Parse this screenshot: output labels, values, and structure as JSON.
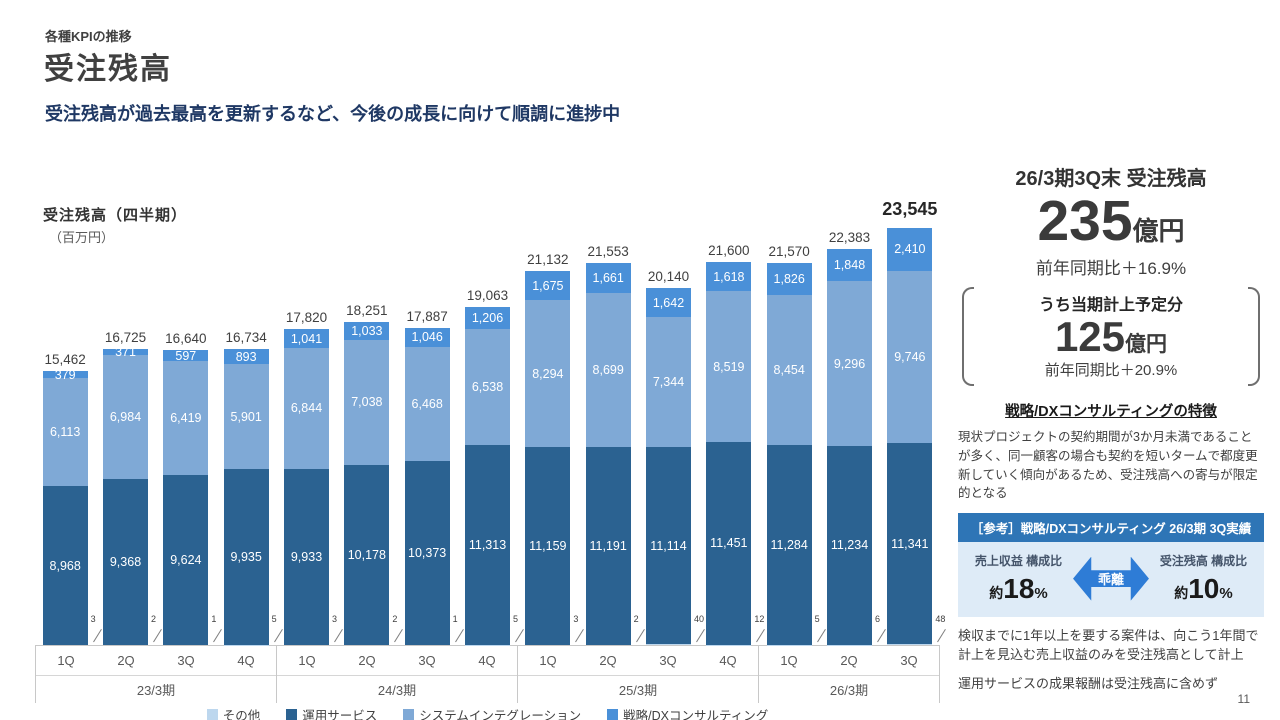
{
  "header": {
    "kicker": "各種KPIの推移",
    "title": "受注残高",
    "subtitle": "受注残高が過去最高を更新するなど、今後の成長に向けて順調に進捗中"
  },
  "chart_data": {
    "type": "bar",
    "stacked": true,
    "title": "受注残高（四半期）",
    "unit_label": "（百万円）",
    "ylim": [
      0,
      23545
    ],
    "legend_position": "bottom",
    "groups": [
      {
        "label": "23/3期",
        "quarters": [
          "1Q",
          "2Q",
          "3Q",
          "4Q"
        ]
      },
      {
        "label": "24/3期",
        "quarters": [
          "1Q",
          "2Q",
          "3Q",
          "4Q"
        ]
      },
      {
        "label": "25/3期",
        "quarters": [
          "1Q",
          "2Q",
          "3Q",
          "4Q"
        ]
      },
      {
        "label": "26/3期",
        "quarters": [
          "1Q",
          "2Q",
          "3Q"
        ]
      }
    ],
    "series": [
      {
        "name": "その他",
        "color": "#BDD7EE",
        "label_style": "callout",
        "values": [
          3,
          2,
          1,
          5,
          3,
          2,
          1,
          5,
          3,
          2,
          40,
          12,
          5,
          6,
          48
        ]
      },
      {
        "name": "運用サービス",
        "color": "#2B6291",
        "label_style": "inside",
        "values": [
          8968,
          9368,
          9624,
          9935,
          9933,
          10178,
          10373,
          11313,
          11159,
          11191,
          11114,
          11451,
          11284,
          11234,
          11341
        ]
      },
      {
        "name": "システムインテグレーション",
        "color": "#7FA9D6",
        "label_style": "inside",
        "values": [
          6113,
          6984,
          6419,
          5901,
          6844,
          7038,
          6468,
          6538,
          8294,
          8699,
          7344,
          8519,
          8454,
          9296,
          9746
        ]
      },
      {
        "name": "戦略/DXコンサルティング",
        "color": "#4A90D8",
        "label_style": "inside",
        "values": [
          379,
          371,
          597,
          893,
          1041,
          1033,
          1046,
          1206,
          1675,
          1661,
          1642,
          1618,
          1826,
          1848,
          2410
        ]
      }
    ],
    "totals": [
      15462,
      16725,
      16640,
      16734,
      17820,
      18251,
      17887,
      19063,
      21132,
      21553,
      20140,
      21600,
      21570,
      22383,
      23545
    ]
  },
  "panel": {
    "title": "26/3期3Q末 受注残高",
    "main_value": "235",
    "main_unit": "億円",
    "main_yoy": "前年同期比＋16.9%",
    "sub_title": "うち当期計上予定分",
    "sub_value": "125",
    "sub_unit": "億円",
    "sub_yoy": "前年同期比＋20.9%",
    "feature_title": "戦略/DXコンサルティングの特徴",
    "feature_text": "現状プロジェクトの契約期間が3か月未満であることが多く、同一顧客の場合も契約を短いタームで都度更新していく傾向があるため、受注残高への寄与が限定的となる",
    "ref_banner": "［参考］戦略/DXコンサルティング 26/3期 3Q実績",
    "ref_left_label": "売上収益 構成比",
    "ref_left_approx": "約",
    "ref_left_value": "18",
    "ref_left_unit": "%",
    "ref_arrow_label": "乖離",
    "ref_right_label": "受注残高 構成比",
    "ref_right_approx": "約",
    "ref_right_value": "10",
    "ref_right_unit": "%",
    "note1": "検収までに1年以上を要する案件は、向こう1年間で計上を見込む売上収益のみを受注残高として計上",
    "note2": "運用サービスの成果報酬は受注残高に含めず"
  },
  "page_number": "11"
}
